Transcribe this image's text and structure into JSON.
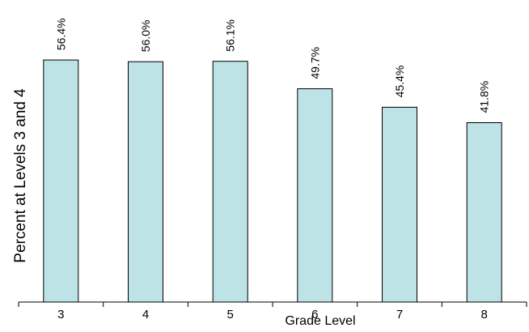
{
  "chart_data": {
    "type": "bar",
    "categories": [
      "3",
      "4",
      "5",
      "6",
      "7",
      "8"
    ],
    "values": [
      56.4,
      56.0,
      56.1,
      49.7,
      45.4,
      41.8
    ],
    "value_labels": [
      "56.4%",
      "56.0%",
      "56.1%",
      "49.7%",
      "45.4%",
      "41.8%"
    ],
    "title": "",
    "xlabel": "Grade Level",
    "ylabel": "Percent at Levels 3 and 4",
    "ylim": [
      0,
      62
    ],
    "grid": false,
    "legend": "none",
    "bar_color": "#bde3e6",
    "edge_color": "#000000"
  }
}
